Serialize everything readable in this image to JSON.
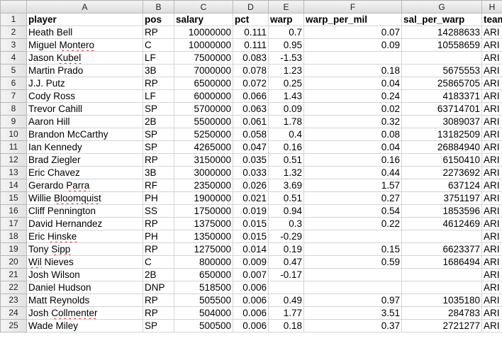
{
  "columns": [
    "A",
    "B",
    "C",
    "D",
    "E",
    "F",
    "G",
    "H"
  ],
  "rows": [
    {
      "n": "1",
      "cells": [
        "player",
        "pos",
        "salary",
        "pct",
        "warp",
        "warp_per_mil",
        "sal_per_warp",
        "team"
      ],
      "header": true
    },
    {
      "n": "2",
      "cells": [
        "Heath Bell",
        "RP",
        "10000000",
        "0.111",
        "0.7",
        "0.07",
        "14288633",
        "ARI"
      ]
    },
    {
      "n": "3",
      "cells": [
        "Miguel Montero",
        "C",
        "10000000",
        "0.111",
        "0.95",
        "0.09",
        "10558659",
        "ARI"
      ],
      "spell": "Montero"
    },
    {
      "n": "4",
      "cells": [
        "Jason Kubel",
        "LF",
        "7500000",
        "0.083",
        "-1.53",
        "",
        "",
        "ARI"
      ],
      "spell": "Kubel"
    },
    {
      "n": "5",
      "cells": [
        "Martin Prado",
        "3B",
        "7000000",
        "0.078",
        "1.23",
        "0.18",
        "5675553",
        "ARI"
      ]
    },
    {
      "n": "6",
      "cells": [
        "J.J. Putz",
        "RP",
        "6500000",
        "0.072",
        "0.25",
        "0.04",
        "25865705",
        "ARI"
      ]
    },
    {
      "n": "7",
      "cells": [
        "Cody Ross",
        "LF",
        "6000000",
        "0.066",
        "1.43",
        "0.24",
        "4183371",
        "ARI"
      ]
    },
    {
      "n": "8",
      "cells": [
        "Trevor Cahill",
        "SP",
        "5700000",
        "0.063",
        "0.09",
        "0.02",
        "63714701",
        "ARI"
      ]
    },
    {
      "n": "9",
      "cells": [
        "Aaron Hill",
        "2B",
        "5500000",
        "0.061",
        "1.78",
        "0.32",
        "3089037",
        "ARI"
      ]
    },
    {
      "n": "10",
      "cells": [
        "Brandon McCarthy",
        "SP",
        "5250000",
        "0.058",
        "0.4",
        "0.08",
        "13182509",
        "ARI"
      ]
    },
    {
      "n": "11",
      "cells": [
        "Ian Kennedy",
        "SP",
        "4265000",
        "0.047",
        "0.16",
        "0.04",
        "26884940",
        "ARI"
      ]
    },
    {
      "n": "12",
      "cells": [
        "Brad Ziegler",
        "RP",
        "3150000",
        "0.035",
        "0.51",
        "0.16",
        "6150410",
        "ARI"
      ]
    },
    {
      "n": "13",
      "cells": [
        "Eric Chavez",
        "3B",
        "3000000",
        "0.033",
        "1.32",
        "0.44",
        "2273692",
        "ARI"
      ]
    },
    {
      "n": "14",
      "cells": [
        "Gerardo Parra",
        "RF",
        "2350000",
        "0.026",
        "3.69",
        "1.57",
        "637124",
        "ARI"
      ],
      "spell": "Parra"
    },
    {
      "n": "15",
      "cells": [
        "Willie Bloomquist",
        "PH",
        "1900000",
        "0.021",
        "0.51",
        "0.27",
        "3751197",
        "ARI"
      ],
      "spell": "Bloomquist"
    },
    {
      "n": "16",
      "cells": [
        "Cliff Pennington",
        "SS",
        "1750000",
        "0.019",
        "0.94",
        "0.54",
        "1853596",
        "ARI"
      ]
    },
    {
      "n": "17",
      "cells": [
        "David Hernandez",
        "RP",
        "1375000",
        "0.015",
        "0.3",
        "0.22",
        "4612469",
        "ARI"
      ]
    },
    {
      "n": "18",
      "cells": [
        "Eric Hinske",
        "PH",
        "1350000",
        "0.015",
        "-0.29",
        "",
        "",
        "ARI"
      ],
      "spell": "Hinske"
    },
    {
      "n": "19",
      "cells": [
        "Tony Sipp",
        "RP",
        "1275000",
        "0.014",
        "0.19",
        "0.15",
        "6623377",
        "ARI"
      ],
      "spell": "Sipp"
    },
    {
      "n": "20",
      "cells": [
        "Wil Nieves",
        "C",
        "800000",
        "0.009",
        "0.47",
        "0.59",
        "1686494",
        "ARI"
      ],
      "spell": "Wil"
    },
    {
      "n": "21",
      "cells": [
        "Josh Wilson",
        "2B",
        "650000",
        "0.007",
        "-0.17",
        "",
        "",
        "ARI"
      ]
    },
    {
      "n": "22",
      "cells": [
        "Daniel Hudson",
        "DNP",
        "518500",
        "0.006",
        "",
        "",
        "",
        "ARI"
      ]
    },
    {
      "n": "23",
      "cells": [
        "Matt Reynolds",
        "RP",
        "505500",
        "0.006",
        "0.49",
        "0.97",
        "1035180",
        "ARI"
      ]
    },
    {
      "n": "24",
      "cells": [
        "Josh Collmenter",
        "RP",
        "504000",
        "0.006",
        "1.77",
        "3.51",
        "284783",
        "ARI"
      ],
      "spell": "Collmenter"
    },
    {
      "n": "25",
      "cells": [
        "Wade Miley",
        "SP",
        "500500",
        "0.006",
        "0.18",
        "0.37",
        "2721277",
        "ARI"
      ]
    }
  ]
}
